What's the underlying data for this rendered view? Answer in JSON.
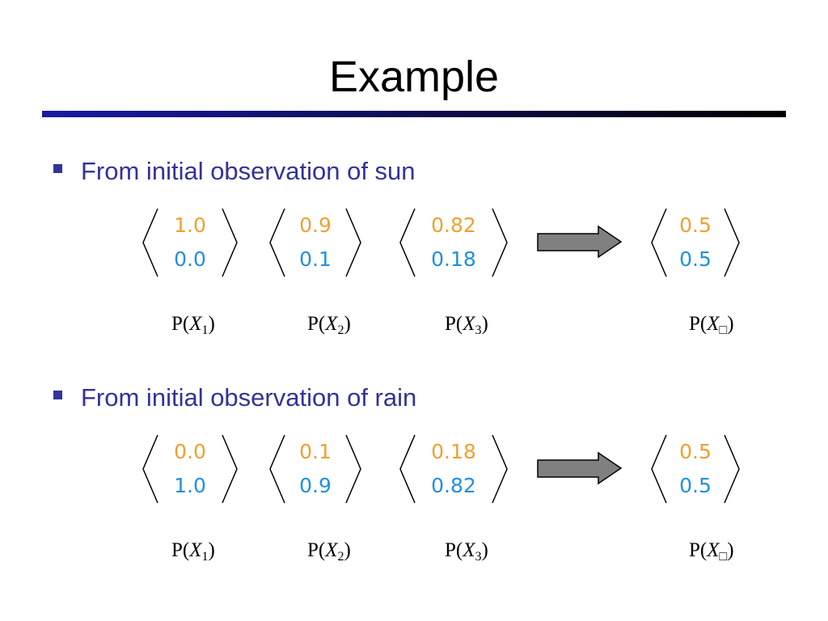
{
  "title": "Example",
  "sections": [
    {
      "bullet": "From initial observation of sun",
      "vectors": [
        {
          "top": "1.0",
          "bottom": "0.0",
          "label": {
            "prefix": "P(",
            "var": "X",
            "sub": "1",
            "suffix": ")"
          }
        },
        {
          "top": "0.9",
          "bottom": "0.1",
          "label": {
            "prefix": "P(",
            "var": "X",
            "sub": "2",
            "suffix": ")"
          }
        },
        {
          "top": "0.82",
          "bottom": "0.18",
          "label": {
            "prefix": "P(",
            "var": "X",
            "sub": "3",
            "suffix": ")"
          }
        },
        {
          "top": "0.5",
          "bottom": "0.5",
          "label": {
            "prefix": "P(",
            "var": "X",
            "sub": "□",
            "suffix": ")"
          }
        }
      ]
    },
    {
      "bullet": "From initial observation of rain",
      "vectors": [
        {
          "top": "0.0",
          "bottom": "1.0",
          "label": {
            "prefix": "P(",
            "var": "X",
            "sub": "1",
            "suffix": ")"
          }
        },
        {
          "top": "0.1",
          "bottom": "0.9",
          "label": {
            "prefix": "P(",
            "var": "X",
            "sub": "2",
            "suffix": ")"
          }
        },
        {
          "top": "0.18",
          "bottom": "0.82",
          "label": {
            "prefix": "P(",
            "var": "X",
            "sub": "3",
            "suffix": ")"
          }
        },
        {
          "top": "0.5",
          "bottom": "0.5",
          "label": {
            "prefix": "P(",
            "var": "X",
            "sub": "□",
            "suffix": ")"
          }
        }
      ]
    }
  ]
}
